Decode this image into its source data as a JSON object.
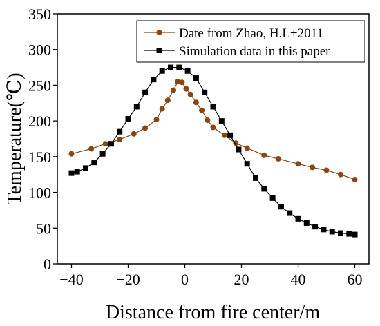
{
  "chart_data": {
    "type": "line",
    "xlabel": "Distance from fire center/m",
    "ylabel": "Temperature(℃)",
    "xlim": [
      -45,
      65
    ],
    "ylim": [
      0,
      350
    ],
    "x_ticks": [
      -40,
      -20,
      0,
      20,
      40,
      60
    ],
    "x_tick_labels": [
      "−40",
      "−20",
      "0",
      "20",
      "40",
      "60"
    ],
    "y_ticks": [
      0,
      50,
      100,
      150,
      200,
      250,
      300,
      350
    ],
    "y_tick_labels": [
      "0",
      "50",
      "100",
      "150",
      "200",
      "250",
      "300",
      "350"
    ],
    "grid": false,
    "legend_position": "top-right",
    "series": [
      {
        "name": "Date from Zhao, H.L+2011",
        "color": "#8B4513",
        "marker": "circle",
        "x": [
          -40,
          -33,
          -28,
          -23,
          -18,
          -14,
          -10,
          -8,
          -6,
          -4,
          -2.5,
          -1,
          0.5,
          2,
          4,
          6,
          8,
          10,
          14,
          18,
          22,
          28,
          33,
          40,
          45,
          50,
          55,
          60
        ],
        "y": [
          154,
          161,
          168,
          174,
          182,
          190,
          202,
          217,
          229,
          243,
          255,
          254,
          245,
          237,
          226,
          215,
          201,
          191,
          180,
          169,
          162,
          152,
          147,
          140,
          135,
          131,
          125,
          118
        ]
      },
      {
        "name": "Simulation data in this paper",
        "color": "#000000",
        "marker": "square",
        "x": [
          -40,
          -38,
          -35,
          -32,
          -29,
          -26,
          -23,
          -20,
          -17,
          -14,
          -11,
          -8,
          -5,
          -2,
          1,
          4,
          7,
          10,
          13,
          16,
          19,
          22,
          25,
          28,
          31,
          34,
          37,
          40,
          43,
          46,
          49,
          52,
          55,
          58,
          60
        ],
        "y": [
          127,
          129,
          134,
          142,
          154,
          168,
          185,
          203,
          220,
          240,
          258,
          270,
          275,
          275,
          270,
          260,
          240,
          220,
          200,
          180,
          160,
          140,
          120,
          105,
          92,
          80,
          71,
          63,
          57,
          52,
          48,
          45,
          43,
          42,
          41
        ]
      }
    ]
  }
}
